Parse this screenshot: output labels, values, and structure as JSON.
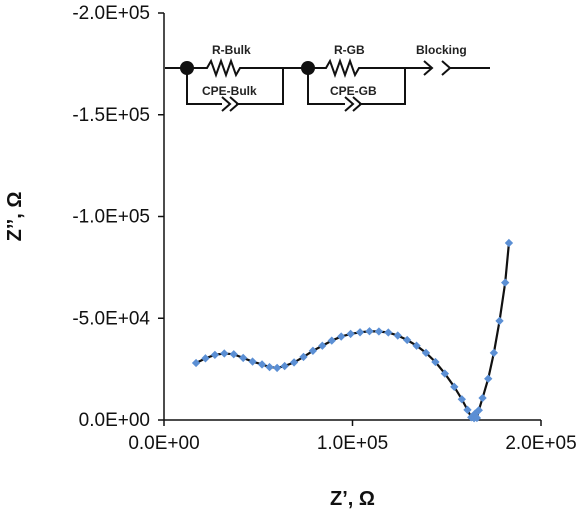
{
  "chart_data": {
    "type": "scatter",
    "xlabel": "Z’, Ω",
    "ylabel": "Z’’, Ω",
    "xlim": [
      0,
      200000
    ],
    "ylim": [
      0,
      -200000
    ],
    "x_ticks": [
      {
        "value": 0,
        "label": "0.0E+00"
      },
      {
        "value": 100000,
        "label": "1.0E+05"
      },
      {
        "value": 200000,
        "label": "2.0E+05"
      }
    ],
    "y_ticks": [
      {
        "value": 0,
        "label": "0.0E+00"
      },
      {
        "value": -50000,
        "label": "-5.0E+04"
      },
      {
        "value": -100000,
        "label": "-1.0E+05"
      },
      {
        "value": -150000,
        "label": "-1.5E+05"
      },
      {
        "value": -200000,
        "label": "-2.0E+05"
      }
    ],
    "grid": false,
    "legend": "none",
    "colors": {
      "marker": "#5b8fd4",
      "line": "#111111",
      "axis": "#111111"
    },
    "series": [
      {
        "x": [
          17000,
          22000,
          27000,
          32000,
          37000,
          42000,
          47000,
          52000,
          56000,
          60000,
          64000,
          69000,
          74000,
          79000,
          84000,
          89000,
          94000,
          99000,
          104000,
          109000,
          114000,
          119000,
          124000,
          129000,
          134000,
          139000,
          144000,
          149000,
          154000,
          158000,
          161000,
          163000,
          164500,
          165000,
          166000,
          167000,
          169000,
          172000,
          175000,
          178000,
          181000,
          183000
        ],
        "y": [
          -28000,
          -30300,
          -32000,
          -32700,
          -32300,
          -30500,
          -28700,
          -27300,
          -26000,
          -25600,
          -26500,
          -28300,
          -31000,
          -34000,
          -36500,
          -39000,
          -41000,
          -42300,
          -43100,
          -43600,
          -43500,
          -43000,
          -41500,
          -39300,
          -36500,
          -33000,
          -28500,
          -22800,
          -16300,
          -10200,
          -5000,
          -1300,
          -900,
          -3100,
          -1000,
          -4800,
          -10800,
          -20300,
          -33000,
          -48700,
          -67500,
          -87000
        ]
      }
    ],
    "circuit": {
      "labels": {
        "r_bulk": "R-Bulk",
        "cpe_bulk": "CPE-Bulk",
        "r_gb": "R-GB",
        "cpe_gb": "CPE-GB",
        "blocking": "Blocking"
      }
    }
  }
}
